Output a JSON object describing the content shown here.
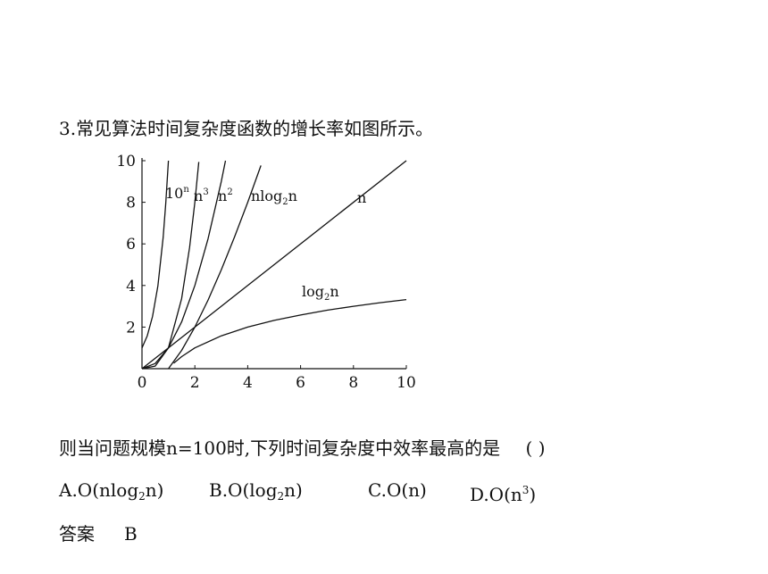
{
  "question": {
    "title": "3.常见算法时间复杂度函数的增长率如图所示。",
    "stem_text": "则当问题规模n=100时,下列时间复杂度中效率最高的是",
    "stem_paren": "(        )",
    "options": {
      "a": {
        "prefix": "A.O(nlog",
        "sub": "2",
        "suffix": "n)"
      },
      "b": {
        "prefix": "B.O(log",
        "sub": "2",
        "suffix": "n)"
      },
      "c": {
        "text": "C.O(n)"
      },
      "d": {
        "prefix": "D.O(n",
        "sup": "3",
        "suffix": ")"
      }
    },
    "answer_label": "答案",
    "answer_value": "B"
  },
  "chart_data": {
    "type": "line",
    "xlim": [
      0,
      10
    ],
    "ylim": [
      0,
      10
    ],
    "x_ticks": [
      "0",
      "2",
      "4",
      "6",
      "8",
      "10"
    ],
    "y_ticks": [
      "2",
      "4",
      "6",
      "8",
      "10"
    ],
    "grid": false,
    "series": [
      {
        "name": "10n",
        "label_base": "10",
        "label_sup": "n",
        "x": [
          0,
          0.2,
          0.4,
          0.6,
          0.8,
          0.9,
          1.0
        ],
        "y": [
          1,
          1.58,
          2.51,
          3.98,
          6.31,
          7.94,
          10
        ]
      },
      {
        "name": "n3",
        "label_base": "n",
        "label_sup": "3",
        "x": [
          0,
          0.5,
          1.0,
          1.5,
          1.8,
          2.0,
          2.15
        ],
        "y": [
          0,
          0.125,
          1,
          3.375,
          5.83,
          8,
          9.94
        ]
      },
      {
        "name": "n2",
        "label_base": "n",
        "label_sup": "2",
        "x": [
          0,
          0.5,
          1.0,
          1.5,
          2.0,
          2.5,
          3.0,
          3.16
        ],
        "y": [
          0,
          0.25,
          1,
          2.25,
          4,
          6.25,
          9,
          10
        ]
      },
      {
        "name": "nlog2n",
        "label_base": "nlog",
        "label_sub": "2",
        "label_tail": "n",
        "x": [
          1,
          1.5,
          2,
          2.5,
          3,
          3.5,
          4,
          4.5
        ],
        "y": [
          0,
          0.88,
          2,
          3.3,
          4.75,
          6.33,
          8,
          9.77
        ]
      },
      {
        "name": "n",
        "label_base": "n",
        "x": [
          0,
          10
        ],
        "y": [
          0,
          10
        ]
      },
      {
        "name": "log2n",
        "label_base": "log",
        "label_sub": "2",
        "label_tail": "n",
        "x": [
          1.2,
          1.5,
          2,
          3,
          4,
          5,
          6,
          7,
          8,
          9,
          10
        ],
        "y": [
          0.26,
          0.58,
          1,
          1.58,
          2,
          2.32,
          2.58,
          2.81,
          3,
          3.17,
          3.32
        ]
      }
    ]
  }
}
